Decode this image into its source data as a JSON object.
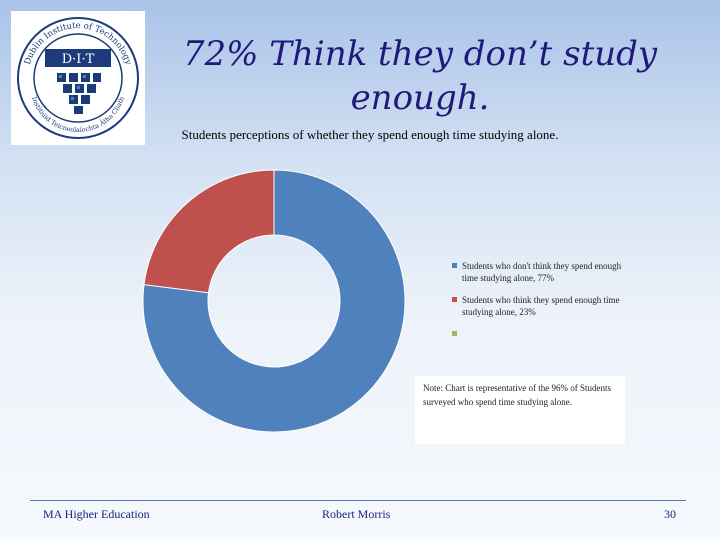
{
  "slide": {
    "title": "72% Think they don’t study enough.",
    "logo_text_top": "Dublin Institute of Technology",
    "logo_text_bottom": "Institiúid Teicneolaíochta Átha Cliath",
    "logo_mark": "D·I·T",
    "note": "Note: Chart is representative of the 96% of Students surveyed who spend time studying alone.",
    "footer_left": "MA  Higher Education",
    "footer_center": "Robert Morris",
    "page_number": "30"
  },
  "colors": {
    "series_blue": "#4f81bd",
    "series_red": "#c0504d",
    "series_green": "#9bbb59",
    "title": "#1f1a7a",
    "logo_navy": "#1b3b7a"
  },
  "chart_data": {
    "type": "doughnut",
    "title": "Students perceptions of whether they spend enough time studying alone.",
    "legend_position": "right",
    "series": [
      {
        "name": "Students who don't think they spend enough time studying alone",
        "value": 77,
        "label": "Students who don't think they spend enough time studying alone, 77%",
        "color": "#4f81bd"
      },
      {
        "name": "Students who think they spend enough time studying alone",
        "value": 23,
        "label": "Students who think they spend enough time studying alone, 23%",
        "color": "#c0504d"
      },
      {
        "name": "",
        "value": 0,
        "label": "",
        "color": "#9bbb59"
      }
    ]
  }
}
